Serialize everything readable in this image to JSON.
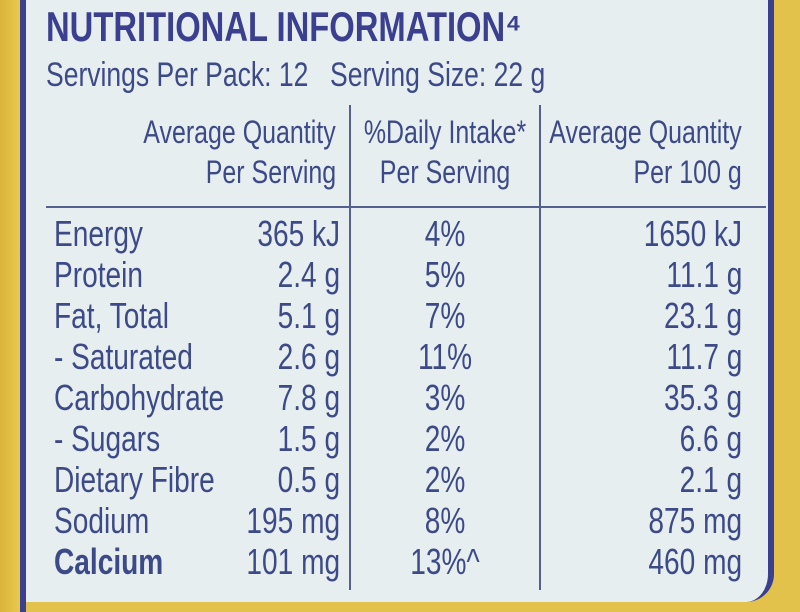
{
  "header": {
    "title": "NUTRITIONAL INFORMATION⁴",
    "servings_per_pack": "Servings Per Pack: 12",
    "serving_size": "Serving Size: 22 g"
  },
  "table": {
    "columns": [
      [
        "Average Quantity",
        "Per Serving"
      ],
      [
        "%Daily Intake*",
        "Per Serving"
      ],
      [
        "Average Quantity",
        "Per 100 g"
      ]
    ],
    "rows": [
      [
        "Energy",
        "365 kJ",
        "4%",
        "1650 kJ"
      ],
      [
        "Protein",
        "2.4 g",
        "5%",
        "11.1 g"
      ],
      [
        "Fat, Total",
        "5.1 g",
        "7%",
        "23.1 g"
      ],
      [
        "- Saturated",
        "2.6 g",
        "11%",
        "11.7 g"
      ],
      [
        "Carbohydrate",
        "7.8 g",
        "3%",
        "35.3 g"
      ],
      [
        "- Sugars",
        "1.5 g",
        "2%",
        "6.6 g"
      ],
      [
        "Dietary Fibre",
        "0.5 g",
        "2%",
        "2.1 g"
      ],
      [
        "Sodium",
        "195 mg",
        "8%",
        "875 mg"
      ],
      [
        "Calcium",
        "101 mg",
        "13%^",
        "460 mg"
      ]
    ]
  }
}
